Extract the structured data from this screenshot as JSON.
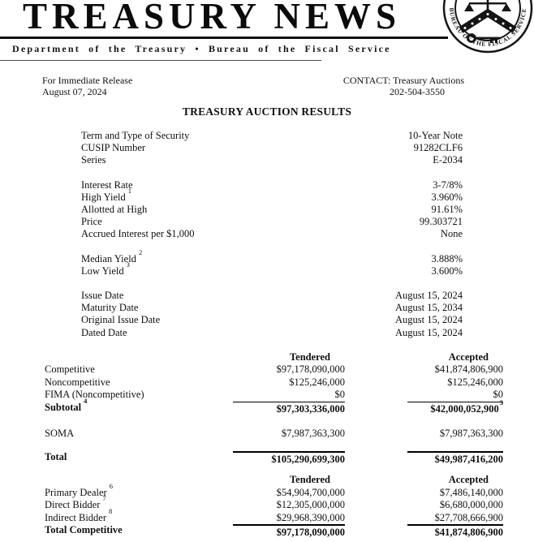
{
  "masthead": {
    "title": "TREASURY NEWS",
    "subtitle": "Department of the Treasury • Bureau of the Fiscal Service",
    "seal_text": "BUREAU OF THE FISCAL SERVICE"
  },
  "release": {
    "line1": "For Immediate Release",
    "line2": "August 07, 2024",
    "contact_label": "CONTACT: Treasury Auctions",
    "contact_phone": "202-504-3550"
  },
  "doc_title": "TREASURY AUCTION RESULTS",
  "spec_groups": [
    [
      {
        "label": "Term and Type of Security",
        "value": "10-Year Note"
      },
      {
        "label": "CUSIP Number",
        "value": "91282CLF6"
      },
      {
        "label": "Series",
        "value": "E-2034"
      }
    ],
    [
      {
        "label": "Interest Rate",
        "value": "3-7/8%"
      },
      {
        "label": "High Yield",
        "sup": "1",
        "value": "3.960%"
      },
      {
        "label": "Allotted at High",
        "value": "91.61%"
      },
      {
        "label": "Price",
        "value": "99.303721"
      },
      {
        "label": "Accrued Interest per $1,000",
        "value": "None"
      }
    ],
    [
      {
        "label": "Median Yield",
        "sup": "2",
        "value": "3.888%"
      },
      {
        "label": "Low Yield",
        "sup": "3",
        "value": "3.600%"
      }
    ],
    [
      {
        "label": "Issue Date",
        "value": "August 15, 2024"
      },
      {
        "label": "Maturity Date",
        "value": "August 15, 2034"
      },
      {
        "label": "Original Issue Date",
        "value": "August 15, 2024"
      },
      {
        "label": "Dated Date",
        "value": "August 15, 2024"
      }
    ]
  ],
  "tables": [
    {
      "headers": {
        "tendered": "Tendered",
        "accepted": "Accepted"
      },
      "rows": [
        {
          "label": "Competitive",
          "tendered": "$97,178,090,000",
          "accepted": "$41,874,806,900"
        },
        {
          "label": "Noncompetitive",
          "tendered": "$125,246,000",
          "accepted": "$125,246,000"
        },
        {
          "label": "FIMA (Noncompetitive)",
          "tendered": "$0",
          "accepted": "$0"
        },
        {
          "label": "Subtotal",
          "sup": "4",
          "bold": true,
          "rule": true,
          "tendered": "$97,303,336,000",
          "accepted": "$42,000,052,900",
          "accepted_sup": "5"
        },
        {
          "spacer": true
        },
        {
          "label": "SOMA",
          "tendered": "$7,987,363,300",
          "accepted": "$7,987,363,300"
        },
        {
          "spacer": true
        },
        {
          "label": "Total",
          "bold": true,
          "rule": true,
          "tendered": "$105,290,699,300",
          "accepted": "$49,987,416,200"
        }
      ]
    },
    {
      "headers": {
        "tendered": "Tendered",
        "accepted": "Accepted"
      },
      "rows": [
        {
          "label": "Primary Dealer",
          "sup": "6",
          "tendered": "$54,904,700,000",
          "accepted": "$7,486,140,000"
        },
        {
          "label": "Direct Bidder",
          "sup": "7",
          "tendered": "$12,305,000,000",
          "accepted": "$6,680,000,000"
        },
        {
          "label": "Indirect Bidder",
          "sup": "8",
          "tendered": "$29,968,390,000",
          "accepted": "$27,708,666,900"
        },
        {
          "label": "Total Competitive",
          "bold": true,
          "rule": true,
          "tendered": "$97,178,090,000",
          "accepted": "$41,874,806,900"
        }
      ]
    }
  ]
}
